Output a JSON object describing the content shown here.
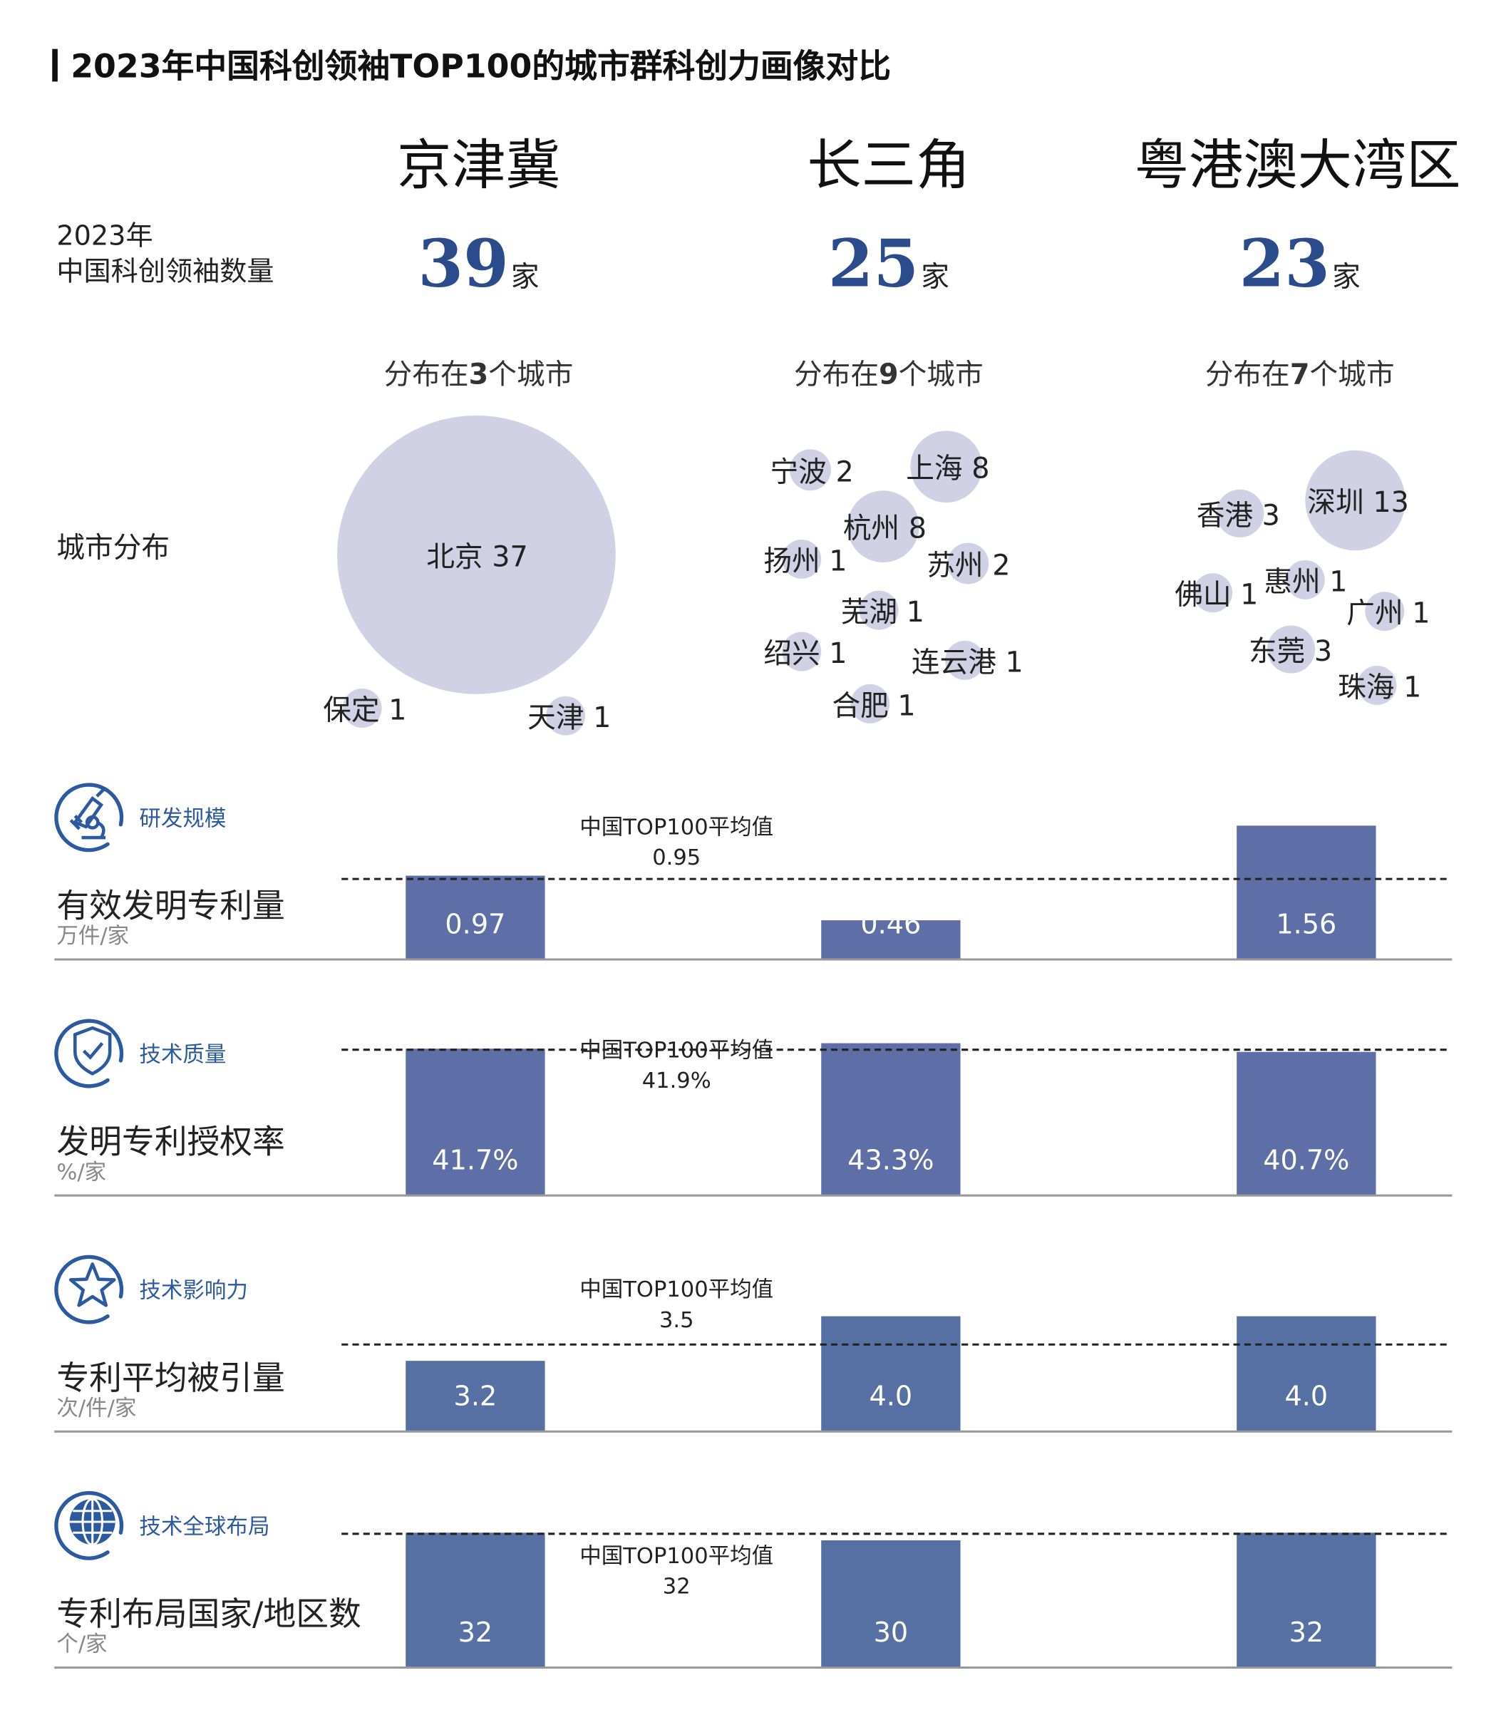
{
  "title": "2023年中国科创领袖TOP100的城市群科创力画像对比",
  "row_labels": {
    "count_line1": "2023年",
    "count_line2": "中国科创领袖数量",
    "city_distribution": "城市分布"
  },
  "regions": [
    {
      "name": "京津冀",
      "count": "39",
      "count_unit": "家",
      "dist_prefix": "分布在",
      "dist_num": "3",
      "dist_suffix": "个城市",
      "cities": [
        {
          "name": "北京",
          "value": 37
        },
        {
          "name": "保定",
          "value": 1
        },
        {
          "name": "天津",
          "value": 1
        }
      ]
    },
    {
      "name": "长三角",
      "count": "25",
      "count_unit": "家",
      "dist_prefix": "分布在",
      "dist_num": "9",
      "dist_suffix": "个城市",
      "cities": [
        {
          "name": "宁波",
          "value": 2
        },
        {
          "name": "上海",
          "value": 8
        },
        {
          "name": "杭州",
          "value": 8
        },
        {
          "name": "扬州",
          "value": 1
        },
        {
          "name": "苏州",
          "value": 2
        },
        {
          "name": "芜湖",
          "value": 1
        },
        {
          "name": "绍兴",
          "value": 1
        },
        {
          "name": "连云港",
          "value": 1
        },
        {
          "name": "合肥",
          "value": 1
        }
      ]
    },
    {
      "name": "粤港澳大湾区",
      "count": "23",
      "count_unit": "家",
      "dist_prefix": "分布在",
      "dist_num": "7",
      "dist_suffix": "个城市",
      "cities": [
        {
          "name": "香港",
          "value": 3
        },
        {
          "name": "深圳",
          "value": 13
        },
        {
          "name": "佛山",
          "value": 1
        },
        {
          "name": "惠州",
          "value": 1
        },
        {
          "name": "广州",
          "value": 1
        },
        {
          "name": "东莞",
          "value": 3
        },
        {
          "name": "珠海",
          "value": 1
        }
      ]
    }
  ],
  "chart_data": [
    {
      "type": "bar",
      "category_label": "研发规模",
      "icon": "microscope-icon",
      "title": "有效发明专利量",
      "unit": "万件/家",
      "categories": [
        "京津冀",
        "长三角",
        "粤港澳大湾区"
      ],
      "values": [
        0.97,
        0.46,
        1.56
      ],
      "value_labels": [
        "0.97",
        "0.46",
        "1.56"
      ],
      "average_label": "中国TOP100平均值",
      "average": 0.95,
      "average_text": "0.95",
      "ylim": [
        0,
        1.77
      ]
    },
    {
      "type": "bar",
      "category_label": "技术质量",
      "icon": "shield-check-icon",
      "title": "发明专利授权率",
      "unit": "%/家",
      "categories": [
        "京津冀",
        "长三角",
        "粤港澳大湾区"
      ],
      "values": [
        41.7,
        43.3,
        40.7
      ],
      "value_labels": [
        "41.7%",
        "43.3%",
        "40.7%"
      ],
      "average_label": "中国TOP100平均值",
      "average": 41.9,
      "average_text": "41.9%",
      "ylim": [
        0,
        43.3
      ]
    },
    {
      "type": "bar",
      "category_label": "技术影响力",
      "icon": "star-icon",
      "title": "专利平均被引量",
      "unit": "次/件/家",
      "categories": [
        "京津冀",
        "长三角",
        "粤港澳大湾区"
      ],
      "values": [
        3.2,
        4.0,
        4.0
      ],
      "value_labels": [
        "3.2",
        "4.0",
        "4.0"
      ],
      "average_label": "中国TOP100平均值",
      "average": 3.5,
      "average_text": "3.5",
      "ylim": [
        1.93,
        4.66
      ]
    },
    {
      "type": "bar",
      "category_label": "技术全球布局",
      "icon": "globe-icon",
      "title": "专利布局国家/地区数",
      "unit": "个/家",
      "categories": [
        "京津冀",
        "长三角",
        "粤港澳大湾区"
      ],
      "values": [
        32,
        30,
        32
      ],
      "value_labels": [
        "32",
        "30",
        "32"
      ],
      "average_label": "中国TOP100平均值",
      "average": 32,
      "average_text": "32",
      "ylim": [
        0,
        36
      ]
    }
  ],
  "colors": {
    "accent": "#2b4c8c",
    "bar": "#5e6fa8",
    "bubble": "#d0d1e4",
    "icon": "#2b5aa0"
  }
}
